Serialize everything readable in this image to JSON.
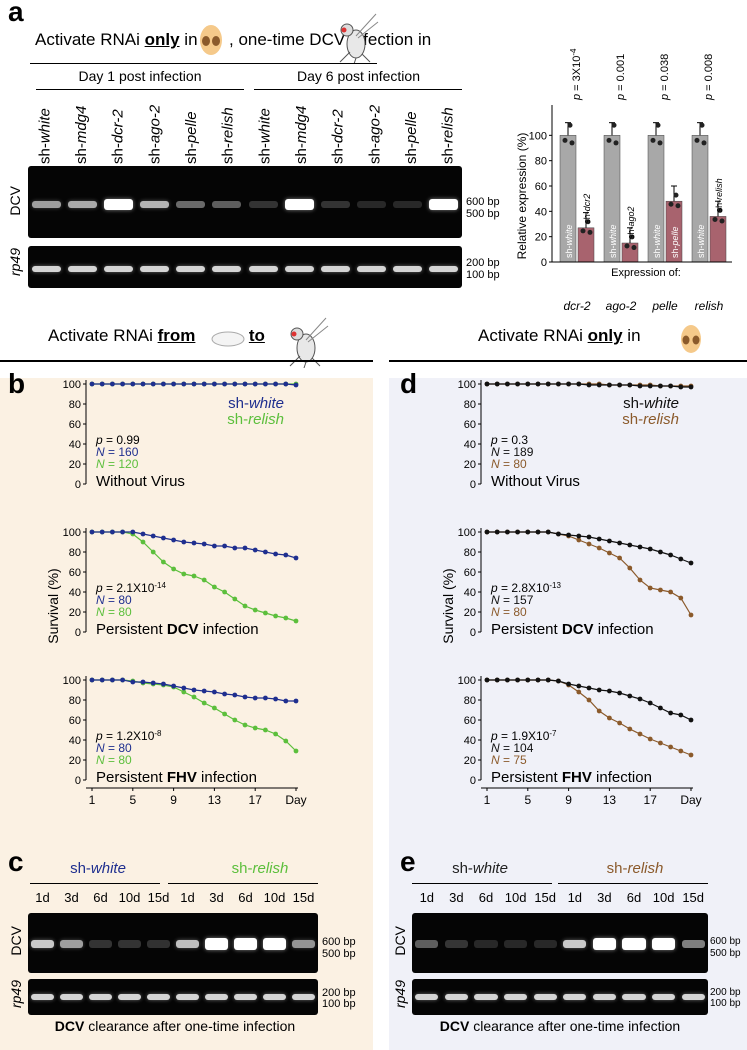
{
  "panel_a": {
    "letter": "a",
    "header": {
      "part1": "Activate RNAi",
      "only": "only",
      "part2": "in",
      "part3": ", one-time DCV infection in"
    },
    "day1": "Day 1 post infection",
    "day6": "Day 6 post infection",
    "lanes": [
      {
        "prefix": "sh-",
        "name": "white"
      },
      {
        "prefix": "sh-",
        "name": "mdg4"
      },
      {
        "prefix": "sh-",
        "name": "dcr-2"
      },
      {
        "prefix": "sh-",
        "name": "ago-2"
      },
      {
        "prefix": "sh-",
        "name": "pelle"
      },
      {
        "prefix": "sh-",
        "name": "relish"
      },
      {
        "prefix": "sh-",
        "name": "white"
      },
      {
        "prefix": "sh-",
        "name": "mdg4"
      },
      {
        "prefix": "sh-",
        "name": "dcr-2"
      },
      {
        "prefix": "sh-",
        "name": "ago-2"
      },
      {
        "prefix": "sh-",
        "name": "pelle"
      },
      {
        "prefix": "sh-",
        "name": "relish"
      }
    ],
    "gel_dcv_label": "DCV",
    "gel_rp49_label": "rp49",
    "markers_dcv": [
      "600 bp",
      "500 bp"
    ],
    "markers_rp49": [
      "200 bp",
      "100 bp"
    ],
    "dcv_band_intensity": [
      0.55,
      0.6,
      1.0,
      0.65,
      0.3,
      0.25,
      0.05,
      1.0,
      0.05,
      0.0,
      0.0,
      1.0
    ],
    "bar_chart": {
      "type": "bar",
      "ylabel": "Relative expression (%)",
      "yticks": [
        "0",
        "20",
        "40",
        "60",
        "80",
        "100"
      ],
      "ylim": [
        0,
        120
      ],
      "groups": [
        {
          "gene": "dcr-2",
          "p": "p = 3X10",
          "p_exp": "-4",
          "ctrl_label": "sh-white",
          "kd_label": "sh-dcr2",
          "ctrl": 100,
          "kd": 27
        },
        {
          "gene": "ago-2",
          "p": "p = 0.001",
          "p_exp": "",
          "ctrl_label": "sh-white",
          "kd_label": "sh-ago2",
          "ctrl": 100,
          "kd": 15
        },
        {
          "gene": "pelle",
          "p": "p = 0.038",
          "p_exp": "",
          "ctrl_label": "sh-white",
          "kd_label": "sh-pelle",
          "ctrl": 100,
          "kd": 48
        },
        {
          "gene": "relish",
          "p": "p = 0.008",
          "p_exp": "",
          "ctrl_label": "sh-white",
          "kd_label": "sh-relish",
          "ctrl": 100,
          "kd": 36
        }
      ],
      "expression_of": "Expression of:",
      "colors": {
        "ctrl": "#a8a8a8",
        "kd": "#a8636e"
      }
    }
  },
  "panel_b": {
    "letter": "b",
    "header": {
      "part1": "Activate RNAi",
      "from": "from",
      "to": "to"
    },
    "legend": {
      "a_prefix": "sh-",
      "a_name": "white",
      "b_prefix": "sh-",
      "b_name": "relish"
    },
    "colors": {
      "a": "#1f2f8f",
      "b": "#5cbf3c"
    },
    "ylabel": "Survival (%)",
    "yticks": [
      "0",
      "20",
      "40",
      "60",
      "80",
      "100"
    ],
    "xticks": [
      "1",
      "5",
      "9",
      "13",
      "17",
      "Day"
    ],
    "charts": [
      {
        "p": "p = 0.99",
        "p_exp": "",
        "n_a": "N = 160",
        "n_b": "N = 120",
        "title": "Without Virus",
        "title_bold": "",
        "a": [
          100,
          100,
          100,
          100,
          100,
          100,
          100,
          100,
          100,
          100,
          100,
          100,
          100,
          100,
          100,
          100,
          100,
          100,
          100,
          100,
          99
        ],
        "b": [
          100,
          100,
          100,
          100,
          100,
          100,
          100,
          100,
          100,
          100,
          100,
          100,
          100,
          100,
          100,
          100,
          100,
          100,
          100,
          100,
          100
        ]
      },
      {
        "p": "p = 2.1X10",
        "p_exp": "-14",
        "n_a": "N = 80",
        "n_b": "N = 80",
        "title_pre": "Persistent ",
        "title_bold": "DCV",
        "title_post": " infection",
        "a": [
          100,
          100,
          100,
          100,
          100,
          98,
          96,
          94,
          92,
          90,
          89,
          88,
          86,
          86,
          84,
          84,
          82,
          80,
          78,
          77,
          74
        ],
        "b": [
          100,
          100,
          100,
          100,
          98,
          90,
          80,
          70,
          63,
          58,
          56,
          52,
          45,
          40,
          33,
          26,
          22,
          19,
          16,
          14,
          11
        ]
      },
      {
        "p": "p = 1.2X10",
        "p_exp": "-8",
        "n_a": "N = 80",
        "n_b": "N = 80",
        "title_pre": "Persistent ",
        "title_bold": "FHV",
        "title_post": " infection",
        "a": [
          100,
          100,
          100,
          100,
          98,
          98,
          97,
          96,
          94,
          92,
          90,
          89,
          88,
          86,
          85,
          83,
          82,
          82,
          81,
          79,
          79
        ],
        "b": [
          100,
          100,
          100,
          100,
          99,
          97,
          96,
          95,
          93,
          88,
          83,
          77,
          72,
          66,
          60,
          55,
          52,
          50,
          46,
          39,
          29
        ]
      }
    ],
    "gel": {
      "group_a": {
        "prefix": "sh-",
        "name": "white"
      },
      "group_b": {
        "prefix": "sh-",
        "name": "relish"
      },
      "days": [
        "1d",
        "3d",
        "6d",
        "10d",
        "15d",
        "1d",
        "3d",
        "6d",
        "10d",
        "15d"
      ],
      "dcv_label": "DCV",
      "rp49_label": "rp49",
      "markers_dcv": [
        "600 bp",
        "500 bp"
      ],
      "markers_rp49": [
        "200 bp",
        "100 bp"
      ],
      "intensity": [
        0.75,
        0.55,
        0.05,
        0.05,
        0.04,
        0.7,
        1.0,
        1.0,
        1.0,
        0.5
      ],
      "caption_bold": "DCV",
      "caption_rest": " clearance after one-time infection"
    }
  },
  "panel_d": {
    "letter": "d",
    "header": {
      "part1": "Activate RNAi",
      "only": "only",
      "part2": "in"
    },
    "legend": {
      "a_prefix": "sh-",
      "a_name": "white",
      "b_prefix": "sh-",
      "b_name": "relish"
    },
    "colors": {
      "a": "#111111",
      "b": "#8b5a2b"
    },
    "ylabel": "Survival (%)",
    "yticks": [
      "0",
      "20",
      "40",
      "60",
      "80",
      "100"
    ],
    "xticks": [
      "1",
      "5",
      "9",
      "13",
      "17",
      "Day"
    ],
    "charts": [
      {
        "p": "p = 0.3",
        "p_exp": "",
        "n_a": "N = 189",
        "n_b": "N = 80",
        "title": "Without Virus",
        "title_bold": "",
        "a": [
          100,
          100,
          100,
          100,
          100,
          100,
          100,
          100,
          100,
          100,
          99,
          99,
          99,
          99,
          99,
          98,
          98,
          98,
          98,
          97,
          97
        ],
        "b": [
          100,
          100,
          100,
          100,
          100,
          100,
          100,
          100,
          100,
          100,
          100,
          100,
          99,
          99,
          99,
          99,
          99,
          98,
          98,
          98,
          98
        ]
      },
      {
        "p": "p = 2.8X10",
        "p_exp": "-13",
        "n_a": "N = 157",
        "n_b": "N = 80",
        "title_pre": "Persistent ",
        "title_bold": "DCV",
        "title_post": " infection",
        "a": [
          100,
          100,
          100,
          100,
          100,
          100,
          100,
          98,
          97,
          96,
          95,
          93,
          91,
          89,
          87,
          85,
          83,
          80,
          77,
          73,
          69
        ],
        "b": [
          100,
          100,
          100,
          100,
          100,
          100,
          100,
          98,
          96,
          92,
          88,
          84,
          79,
          74,
          64,
          52,
          44,
          42,
          40,
          34,
          17
        ]
      },
      {
        "p": "p = 1.9X10",
        "p_exp": "-7",
        "n_a": "N = 104",
        "n_b": "N = 75",
        "title_pre": "Persistent ",
        "title_bold": "FHV",
        "title_post": " infection",
        "a": [
          100,
          100,
          100,
          100,
          100,
          100,
          100,
          99,
          96,
          94,
          92,
          90,
          89,
          87,
          84,
          81,
          77,
          72,
          67,
          65,
          60
        ],
        "b": [
          100,
          100,
          100,
          100,
          100,
          100,
          100,
          99,
          95,
          88,
          80,
          69,
          62,
          57,
          51,
          46,
          41,
          37,
          33,
          29,
          25
        ]
      }
    ],
    "gel": {
      "group_a": {
        "prefix": "sh-",
        "name": "white"
      },
      "group_b": {
        "prefix": "sh-",
        "name": "relish"
      },
      "days": [
        "1d",
        "3d",
        "6d",
        "10d",
        "15d",
        "1d",
        "3d",
        "6d",
        "10d",
        "15d"
      ],
      "dcv_label": "DCV",
      "rp49_label": "rp49",
      "markers_dcv": [
        "600 bp",
        "500 bp"
      ],
      "markers_rp49": [
        "200 bp",
        "100 bp"
      ],
      "intensity": [
        0.25,
        0.06,
        0.0,
        0.0,
        0.0,
        0.75,
        1.0,
        1.0,
        1.0,
        0.4
      ],
      "caption_bold": "DCV",
      "caption_rest": " clearance after one-time infection"
    }
  },
  "panel_c_letter": "c",
  "panel_e_letter": "e"
}
